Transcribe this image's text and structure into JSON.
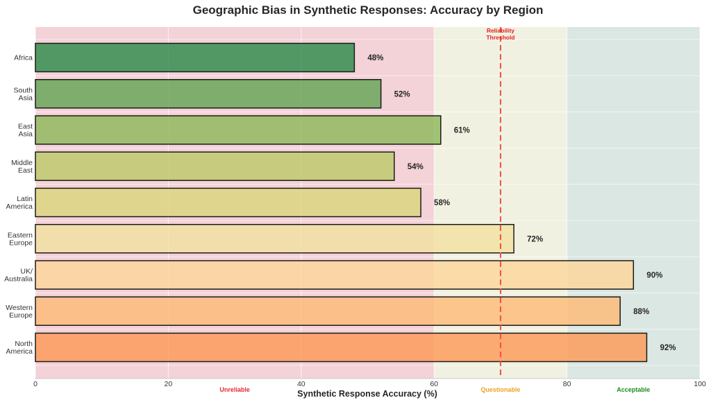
{
  "chart_data": {
    "type": "bar",
    "orientation": "horizontal",
    "title": "Geographic Bias in Synthetic Responses: Accuracy by Region",
    "xlabel": "Synthetic Response Accuracy (%)",
    "ylabel": "",
    "xlim": [
      0,
      100
    ],
    "xticks": [
      0,
      20,
      40,
      60,
      80,
      100
    ],
    "grid": true,
    "categories": [
      "Africa",
      "South Asia",
      "East Asia",
      "Middle East",
      "Latin America",
      "Eastern Europe",
      "UK/ Australia",
      "Western Europe",
      "North America"
    ],
    "category_lines": [
      [
        "Africa"
      ],
      [
        "South",
        "Asia"
      ],
      [
        "East",
        "Asia"
      ],
      [
        "Middle",
        "East"
      ],
      [
        "Latin",
        "America"
      ],
      [
        "Eastern",
        "Europe"
      ],
      [
        "UK/",
        "Australia"
      ],
      [
        "Western",
        "Europe"
      ],
      [
        "North",
        "America"
      ]
    ],
    "values": [
      48,
      52,
      61,
      54,
      58,
      72,
      90,
      88,
      92
    ],
    "value_labels": [
      "48%",
      "52%",
      "61%",
      "54%",
      "58%",
      "72%",
      "90%",
      "88%",
      "92%"
    ],
    "bar_colors": [
      "#2e8b4b",
      "#64a556",
      "#8db85a",
      "#bcc96a",
      "#dcd67c",
      "#f2e1a0",
      "#fdd69a",
      "#fdbb78",
      "#fc9a58"
    ],
    "zones": [
      {
        "name": "Unreliable",
        "from": 0,
        "to": 60,
        "color": "#d04a64",
        "label_color": "#e8282e"
      },
      {
        "name": "Questionable",
        "from": 60,
        "to": 80,
        "color": "#c9c88a",
        "label_color": "#f0a020"
      },
      {
        "name": "Acceptable",
        "from": 80,
        "to": 100,
        "color": "#6f9e8c",
        "label_color": "#1c8c1c"
      }
    ],
    "threshold": {
      "value": 70,
      "label_lines": [
        "Reliability",
        "Threshold"
      ],
      "color": "#f05040"
    }
  }
}
